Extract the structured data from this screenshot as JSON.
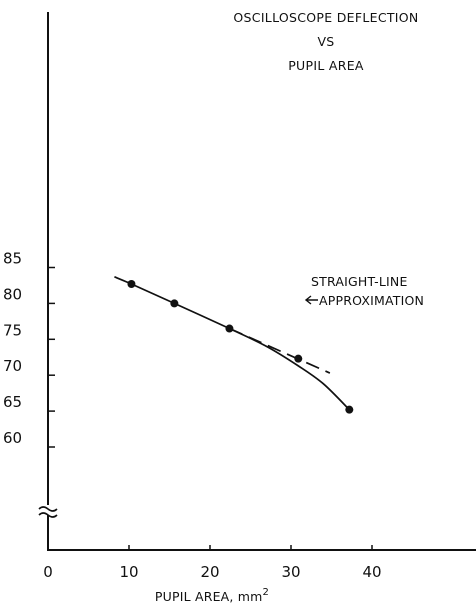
{
  "chart_data": {
    "type": "scatter",
    "title": [
      "OSCILLOSCOPE DEFLECTION",
      "VS",
      "PUPIL AREA"
    ],
    "xlabel": "PUPIL AREA, mm",
    "xlabel_superscript": "2",
    "ylabel": "",
    "xlim": [
      0,
      48
    ],
    "ylim": [
      57,
      88
    ],
    "x_ticks": [
      0,
      10,
      20,
      30,
      40
    ],
    "y_ticks": [
      60,
      65,
      70,
      75,
      80,
      85
    ],
    "y_axis_break": true,
    "grid": false,
    "series": [
      {
        "kind": "points",
        "x": [
          10.3,
          15.6,
          22.4,
          30.9,
          37.2
        ],
        "y": [
          82.7,
          80.0,
          76.5,
          72.3,
          65.2
        ]
      },
      {
        "kind": "curve",
        "x": [
          8.2,
          10.3,
          15.6,
          22.4,
          27.0,
          30.9,
          34.0,
          37.2
        ],
        "y": [
          83.7,
          82.7,
          80.0,
          76.5,
          74.0,
          71.3,
          68.8,
          65.2
        ]
      },
      {
        "kind": "dashed-line",
        "x": [
          22.4,
          34.8
        ],
        "y": [
          76.5,
          70.3
        ]
      }
    ],
    "annotations": [
      {
        "text": [
          "STRAIGHT-LINE",
          "APPROXIMATION"
        ],
        "arrow": true
      }
    ]
  }
}
